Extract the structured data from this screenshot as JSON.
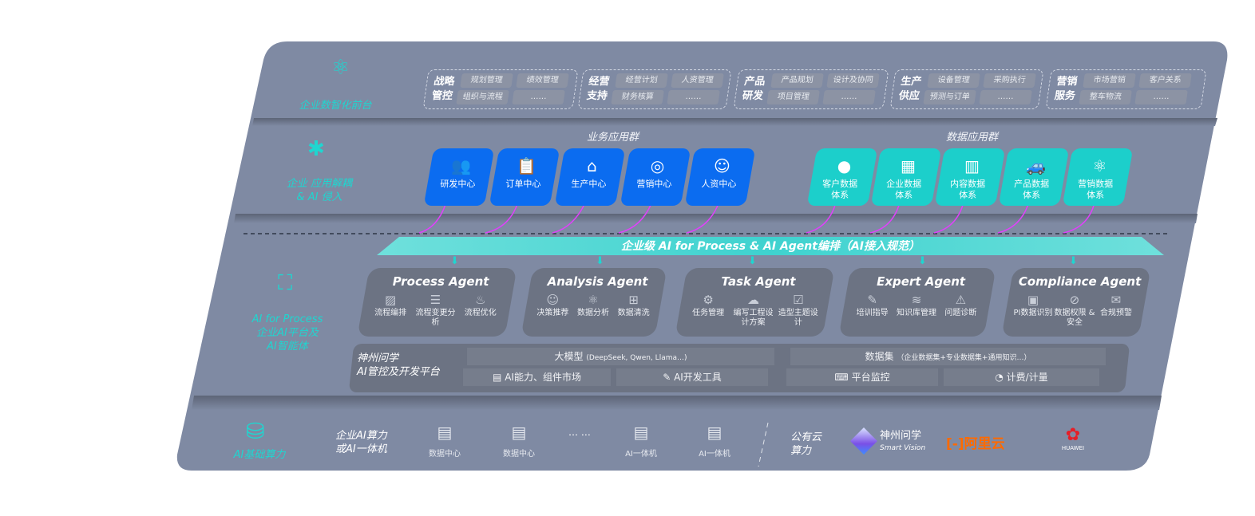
{
  "colors": {
    "accent_cyan": "#1fd6d0",
    "tile_blue": "#0b6cf0",
    "tile_teal": "#1ccfcb",
    "connector_magenta": "#e040fb",
    "panel": "#7f8aa3",
    "card": "#6c7383"
  },
  "front": {
    "label": "企业数智化前台",
    "icon": "brain-icon",
    "groups": [
      {
        "title": "战略管控",
        "items": [
          "规划管理",
          "绩效管理",
          "组织与流程",
          "……"
        ]
      },
      {
        "title": "经营支持",
        "items": [
          "经营计划",
          "人资管理",
          "财务核算",
          "……"
        ]
      },
      {
        "title": "产品研发",
        "items": [
          "产品规划",
          "设计及协同",
          "项目管理",
          "……"
        ]
      },
      {
        "title": "生产供应",
        "items": [
          "设备管理",
          "采购执行",
          "预测与订单",
          "……"
        ]
      },
      {
        "title": "营销服务",
        "items": [
          "市场营销",
          "客户关系",
          "整车物流",
          "……"
        ]
      }
    ]
  },
  "apps": {
    "label_1": "企业 应用解耦",
    "label_2": "& AI 侵入",
    "icon": "network-node-icon",
    "business_header": "业务应用群",
    "data_header": "数据应用群",
    "business": [
      {
        "label": "研发中心",
        "icon": "team-icon"
      },
      {
        "label": "订单中心",
        "icon": "clipboard-icon"
      },
      {
        "label": "生产中心",
        "icon": "factory-icon"
      },
      {
        "label": "营销中心",
        "icon": "target-icon"
      },
      {
        "label": "人资中心",
        "icon": "people-icon"
      }
    ],
    "data": [
      {
        "label": "客户数据体系",
        "icon": "user-icon"
      },
      {
        "label": "企业数据体系",
        "icon": "building-icon"
      },
      {
        "label": "内容数据体系",
        "icon": "books-icon"
      },
      {
        "label": "产品数据体系",
        "icon": "car-icon"
      },
      {
        "label": "营销数据体系",
        "icon": "atom-icon"
      }
    ]
  },
  "orchestration": {
    "banner": "企业级 AI for Process & AI Agent编排（AI接入规范）"
  },
  "ai": {
    "label_1": "AI for Process",
    "label_2": "企业AI平台及",
    "label_3": "AI智能体",
    "icon": "face-scan-icon",
    "agents": [
      {
        "title": "Process Agent",
        "items": [
          "流程编排",
          "流程变更分析",
          "流程优化"
        ]
      },
      {
        "title": "Analysis Agent",
        "items": [
          "决策推荐",
          "数据分析",
          "数据清洗"
        ]
      },
      {
        "title": "Task Agent",
        "items": [
          "任务管理",
          "编写工程设计方案",
          "造型主题设计"
        ]
      },
      {
        "title": "Expert Agent",
        "items": [
          "培训指导",
          "知识库管理",
          "问题诊断"
        ]
      },
      {
        "title": "Compliance Agent",
        "items": [
          "PI数据识别",
          "数据权限 & 安全",
          "合规预警"
        ]
      }
    ],
    "platform": {
      "name_1": "神州问学",
      "name_2": "AI管控及开发平台",
      "model": "大模型",
      "model_note": "(DeepSeek, Qwen, Llama…)",
      "dataset": "数据集",
      "dataset_note": "（企业数据集+专业数据集+通用知识…）",
      "market": "AI能力、组件市场",
      "devtools": "AI开发工具",
      "monitor": "平台监控",
      "billing": "计费/计量"
    }
  },
  "compute": {
    "label": "AI基础算力",
    "icon": "database-icon",
    "enterprise_1": "企业AI算力",
    "enterprise_2": "或AI一体机",
    "servers": [
      "数据中心",
      "数据中心",
      "AI一体机",
      "AI一体机"
    ],
    "ellipsis": "… …",
    "public_1": "公有云",
    "public_2": "算力",
    "vendors": {
      "smartvision_cn": "神州问学",
      "smartvision_en": "Smart Vision",
      "aliyun": "阿里云",
      "huawei": "HUAWEI"
    }
  }
}
